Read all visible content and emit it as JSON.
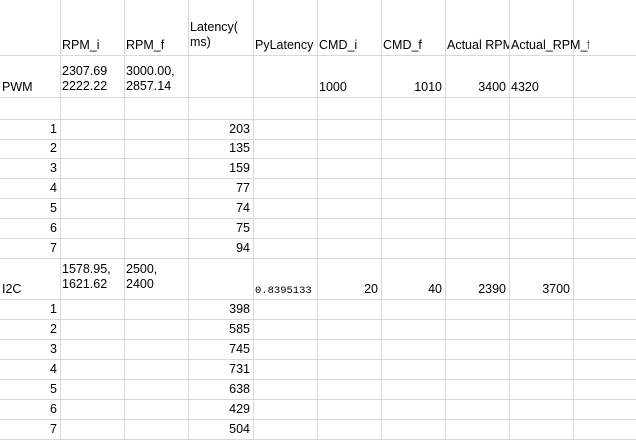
{
  "headers": {
    "rpm_i": "RPM_i",
    "rpm_f": "RPM_f",
    "latency": "Latency(\nms)",
    "pylatency": "PyLatency",
    "cmd_i": "CMD_i",
    "cmd_f": "CMD_f",
    "actual_rpm_i": "Actual RPM",
    "actual_rpm_f": "Actual_RPM_f"
  },
  "pwm": {
    "label": "PWM",
    "rpm_i": "2307.69\n2222.22",
    "rpm_f": "3000.00,\n2857.14",
    "cmd_i": "1000",
    "cmd_f": "1010",
    "actual_rpm_i": "3400",
    "actual_rpm_f": "4320",
    "rows": [
      {
        "idx": "1",
        "latency": "203"
      },
      {
        "idx": "2",
        "latency": "135"
      },
      {
        "idx": "3",
        "latency": "159"
      },
      {
        "idx": "4",
        "latency": "77"
      },
      {
        "idx": "5",
        "latency": "74"
      },
      {
        "idx": "6",
        "latency": "75"
      },
      {
        "idx": "7",
        "latency": "94"
      }
    ]
  },
  "i2c": {
    "label": "I2C",
    "rpm_i": "1578.95,\n1621.62",
    "rpm_f": "2500,\n2400",
    "pylatency": "0.8395133",
    "cmd_i": "20",
    "cmd_f": "40",
    "actual_rpm_i": "2390",
    "actual_rpm_f": "3700",
    "rows": [
      {
        "idx": "1",
        "latency": "398"
      },
      {
        "idx": "2",
        "latency": "585"
      },
      {
        "idx": "3",
        "latency": "745"
      },
      {
        "idx": "4",
        "latency": "731"
      },
      {
        "idx": "5",
        "latency": "638"
      },
      {
        "idx": "6",
        "latency": "429"
      },
      {
        "idx": "7",
        "latency": "504"
      }
    ]
  }
}
